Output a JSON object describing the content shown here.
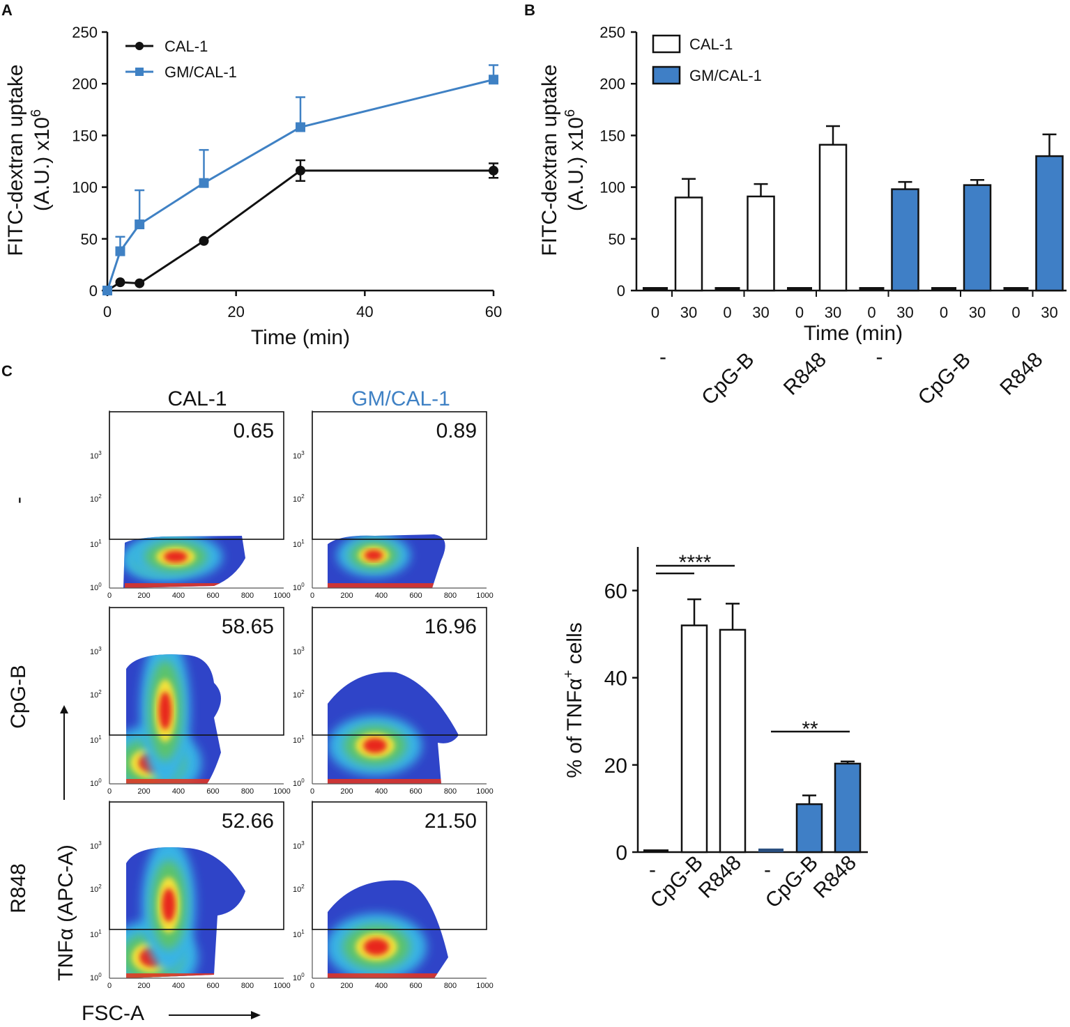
{
  "panel_labels": {
    "a": "A",
    "b": "B",
    "c": "C"
  },
  "colors": {
    "cal": "#111111",
    "gm": "#3f81c4",
    "gm_bar": "#3f7fc6",
    "open_bar": "#ffffff"
  },
  "chart_data": [
    {
      "id": "A",
      "type": "line",
      "title": "",
      "xlabel": "Time (min)",
      "ylabel": "FITC-dextran uptake",
      "ylabel2": "(A.U.) x10",
      "ylabel_exp": "6",
      "xlim": [
        0,
        60
      ],
      "ylim": [
        0,
        250
      ],
      "xticks": [
        0,
        20,
        40,
        60
      ],
      "yticks": [
        0,
        50,
        100,
        150,
        200,
        250
      ],
      "legend_position": "top-left",
      "series": [
        {
          "name": "CAL-1",
          "marker": "circle",
          "color": "#111111",
          "x": [
            0,
            2,
            5,
            15,
            30,
            60
          ],
          "y": [
            0,
            8,
            7,
            48,
            116,
            116
          ],
          "err": [
            0,
            0,
            0,
            0,
            10,
            7
          ]
        },
        {
          "name": "GM/CAL-1",
          "marker": "square",
          "color": "#3f81c4",
          "x": [
            0,
            2,
            5,
            15,
            30,
            60
          ],
          "y": [
            0,
            38,
            64,
            104,
            158,
            204
          ],
          "err": [
            0,
            14,
            33,
            32,
            29,
            14
          ]
        }
      ]
    },
    {
      "id": "B",
      "type": "bar",
      "title": "",
      "xlabel": "Time (min)",
      "ylabel": "FITC-dextran uptake",
      "ylabel2": "(A.U.) x10",
      "ylabel_exp": "6",
      "ylim": [
        0,
        250
      ],
      "yticks": [
        0,
        50,
        100,
        150,
        200,
        250
      ],
      "legend_position": "top-left",
      "legend": [
        "CAL-1",
        "GM/CAL-1"
      ],
      "groups": [
        {
          "label": "-",
          "line": "CAL-1",
          "categories": [
            "0",
            "30"
          ],
          "values": [
            2,
            90
          ],
          "err": [
            1,
            18
          ]
        },
        {
          "label": "CpG-B",
          "line": "CAL-1",
          "categories": [
            "0",
            "30"
          ],
          "values": [
            2,
            91
          ],
          "err": [
            1,
            12
          ]
        },
        {
          "label": "R848",
          "line": "CAL-1",
          "categories": [
            "0",
            "30"
          ],
          "values": [
            2,
            141
          ],
          "err": [
            1,
            18
          ]
        },
        {
          "label": "-",
          "line": "GM/CAL-1",
          "categories": [
            "0",
            "30"
          ],
          "values": [
            2,
            98
          ],
          "err": [
            1,
            7
          ]
        },
        {
          "label": "CpG-B",
          "line": "GM/CAL-1",
          "categories": [
            "0",
            "30"
          ],
          "values": [
            2,
            102
          ],
          "err": [
            1,
            5
          ]
        },
        {
          "label": "R848",
          "line": "GM/CAL-1",
          "categories": [
            "0",
            "30"
          ],
          "values": [
            2,
            130
          ],
          "err": [
            1,
            21
          ]
        }
      ]
    },
    {
      "id": "C-bar",
      "type": "bar",
      "title": "",
      "ylabel": "% of TNFα",
      "ylabel_sup": "+",
      "ylabel_suffix": " cells",
      "ylim": [
        0,
        70
      ],
      "yticks": [
        0,
        20,
        40,
        60
      ],
      "categories": [
        "-",
        "CpG-B",
        "R848",
        "-",
        "CpG-B",
        "R848"
      ],
      "series_line": [
        "CAL-1",
        "CAL-1",
        "CAL-1",
        "GM/CAL-1",
        "GM/CAL-1",
        "GM/CAL-1"
      ],
      "values": [
        0.3,
        52,
        51,
        0.5,
        11,
        20.3
      ],
      "err": [
        0.2,
        6,
        6,
        0.3,
        2,
        0.5
      ],
      "annotations": [
        {
          "text": "****",
          "from": 0,
          "to": [
            1,
            2
          ]
        },
        {
          "text": "**",
          "from": 3,
          "to": [
            5
          ]
        }
      ]
    }
  ],
  "flow": {
    "col_titles": [
      "CAL-1",
      "GM/CAL-1"
    ],
    "row_labels": [
      "-",
      "CpG-B",
      "R848"
    ],
    "xticks": [
      "0",
      "200",
      "400",
      "600",
      "800",
      "1000"
    ],
    "yticks": [
      "10",
      "10",
      "10",
      "10"
    ],
    "ytick_exps": [
      "0",
      "1",
      "2",
      "3"
    ],
    "x_axis_label": "FSC-A",
    "y_axis_label": "TNFα (APC-A)",
    "percentages": [
      [
        "0.65",
        "0.89"
      ],
      [
        "58.65",
        "16.96"
      ],
      [
        "52.66",
        "21.50"
      ]
    ]
  }
}
